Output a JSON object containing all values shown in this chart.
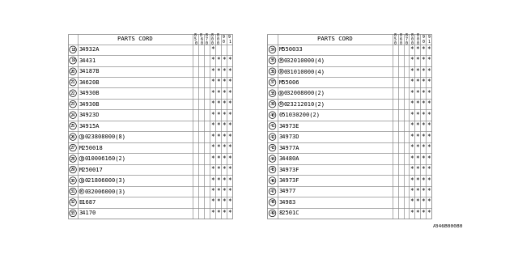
{
  "watermark": "A346B00080",
  "col_headers": [
    [
      "8",
      "5",
      "0"
    ],
    [
      "8",
      "6",
      "0"
    ],
    [
      "8",
      "7",
      "0"
    ],
    [
      "8",
      "0",
      "0"
    ],
    [
      "8",
      "0",
      "0"
    ],
    [
      "9",
      "0"
    ],
    [
      "9",
      "1"
    ]
  ],
  "left_table": {
    "rows": [
      {
        "num": "18",
        "prefix": "",
        "part": "34932A",
        "marks": [
          0,
          0,
          0,
          1,
          0,
          0,
          0
        ]
      },
      {
        "num": "19",
        "prefix": "",
        "part": "34431",
        "marks": [
          0,
          0,
          0,
          1,
          1,
          1,
          1
        ]
      },
      {
        "num": "20",
        "prefix": "",
        "part": "34187B",
        "marks": [
          0,
          0,
          0,
          1,
          1,
          1,
          1
        ]
      },
      {
        "num": "21",
        "prefix": "",
        "part": "34620B",
        "marks": [
          0,
          0,
          0,
          1,
          1,
          1,
          1
        ]
      },
      {
        "num": "22",
        "prefix": "",
        "part": "34930B",
        "marks": [
          0,
          0,
          0,
          1,
          1,
          1,
          1
        ]
      },
      {
        "num": "23",
        "prefix": "",
        "part": "34930B",
        "marks": [
          0,
          0,
          0,
          1,
          1,
          1,
          1
        ]
      },
      {
        "num": "24",
        "prefix": "",
        "part": "34923D",
        "marks": [
          0,
          0,
          0,
          1,
          1,
          1,
          1
        ]
      },
      {
        "num": "25",
        "prefix": "",
        "part": "34915A",
        "marks": [
          0,
          0,
          0,
          1,
          1,
          1,
          1
        ]
      },
      {
        "num": "26",
        "prefix": "N",
        "part": "023808000(8)",
        "marks": [
          0,
          0,
          0,
          1,
          1,
          1,
          1
        ]
      },
      {
        "num": "27",
        "prefix": "",
        "part": "M250018",
        "marks": [
          0,
          0,
          0,
          1,
          1,
          1,
          1
        ]
      },
      {
        "num": "28",
        "prefix": "B",
        "part": "010006160(2)",
        "marks": [
          0,
          0,
          0,
          1,
          1,
          1,
          1
        ]
      },
      {
        "num": "29",
        "prefix": "",
        "part": "M250017",
        "marks": [
          0,
          0,
          0,
          1,
          1,
          1,
          1
        ]
      },
      {
        "num": "30",
        "prefix": "N",
        "part": "021806000(3)",
        "marks": [
          0,
          0,
          0,
          1,
          1,
          1,
          1
        ]
      },
      {
        "num": "31",
        "prefix": "W",
        "part": "032006000(3)",
        "marks": [
          0,
          0,
          0,
          1,
          1,
          1,
          1
        ]
      },
      {
        "num": "32",
        "prefix": "",
        "part": "B1687",
        "marks": [
          0,
          0,
          0,
          1,
          1,
          1,
          1
        ]
      },
      {
        "num": "33",
        "prefix": "",
        "part": "34170",
        "marks": [
          0,
          0,
          0,
          1,
          1,
          1,
          1
        ]
      }
    ]
  },
  "right_table": {
    "rows": [
      {
        "num": "34",
        "prefix": "",
        "part": "M550033",
        "marks": [
          0,
          0,
          0,
          1,
          1,
          1,
          1
        ]
      },
      {
        "num": "35",
        "prefix": "W",
        "part": "032010000(4)",
        "marks": [
          0,
          0,
          0,
          1,
          1,
          1,
          1
        ]
      },
      {
        "num": "36",
        "prefix": "W",
        "part": "031010000(4)",
        "marks": [
          0,
          0,
          0,
          1,
          1,
          1,
          1
        ]
      },
      {
        "num": "37",
        "prefix": "",
        "part": "M55006",
        "marks": [
          0,
          0,
          0,
          1,
          1,
          1,
          1
        ]
      },
      {
        "num": "38",
        "prefix": "W",
        "part": "032008000(2)",
        "marks": [
          0,
          0,
          0,
          1,
          1,
          1,
          1
        ]
      },
      {
        "num": "39",
        "prefix": "N",
        "part": "023212010(2)",
        "marks": [
          0,
          0,
          0,
          1,
          1,
          1,
          1
        ]
      },
      {
        "num": "40",
        "prefix": "",
        "part": "051030200(2)",
        "marks": [
          0,
          0,
          0,
          1,
          1,
          1,
          1
        ]
      },
      {
        "num": "41",
        "prefix": "",
        "part": "34973E",
        "marks": [
          0,
          0,
          0,
          1,
          1,
          1,
          1
        ]
      },
      {
        "num": "42",
        "prefix": "",
        "part": "34973D",
        "marks": [
          0,
          0,
          0,
          1,
          1,
          1,
          1
        ]
      },
      {
        "num": "43",
        "prefix": "",
        "part": "34977A",
        "marks": [
          0,
          0,
          0,
          1,
          1,
          1,
          1
        ]
      },
      {
        "num": "44",
        "prefix": "",
        "part": "34480A",
        "marks": [
          0,
          0,
          0,
          1,
          1,
          1,
          1
        ]
      },
      {
        "num": "45",
        "prefix": "",
        "part": "34973F",
        "marks": [
          0,
          0,
          0,
          1,
          1,
          1,
          1
        ]
      },
      {
        "num": "46",
        "prefix": "",
        "part": "34973F",
        "marks": [
          0,
          0,
          0,
          1,
          1,
          1,
          1
        ]
      },
      {
        "num": "47",
        "prefix": "",
        "part": "34977",
        "marks": [
          0,
          0,
          0,
          1,
          1,
          1,
          1
        ]
      },
      {
        "num": "48",
        "prefix": "",
        "part": "34983",
        "marks": [
          0,
          0,
          0,
          1,
          1,
          1,
          1
        ]
      },
      {
        "num": "49",
        "prefix": "",
        "part": "82501C",
        "marks": [
          0,
          0,
          0,
          1,
          1,
          1,
          1
        ]
      }
    ]
  },
  "bg_color": "#ffffff",
  "line_color": "#888888",
  "text_color": "#000000"
}
